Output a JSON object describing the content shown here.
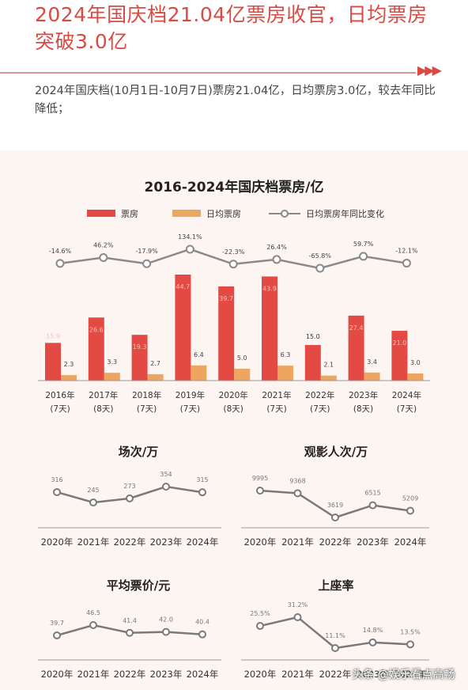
{
  "headline": "2024年国庆档21.04亿票房收官，日均票房突破3.0亿",
  "intro": "2024年国庆档(10月1日-10月7日)票房21.04亿，日均票房3.0亿，较去年同比降低；",
  "arrow_glyph": "▶▶▶",
  "watermark": "头条 @娱乐看点高畅",
  "colors": {
    "accent": "#d94a42",
    "bar_box": "#e34a43",
    "bar_daily": "#eda55f",
    "line": "#8a8a8a"
  },
  "chart_data": [
    {
      "type": "bar",
      "title": "2016-2024年国庆档票房/亿",
      "categories": [
        "2016年",
        "2017年",
        "2018年",
        "2019年",
        "2020年",
        "2021年",
        "2022年",
        "2023年",
        "2024年"
      ],
      "category_sublabels": [
        "(7天)",
        "(8天)",
        "(7天)",
        "(7天)",
        "(8天)",
        "(7天)",
        "(7天)",
        "(8天)",
        "(7天)"
      ],
      "series": [
        {
          "name": "票房",
          "values": [
            15.9,
            26.6,
            19.3,
            44.7,
            39.7,
            43.9,
            15.0,
            27.4,
            21.0
          ],
          "labels": [
            "15.9",
            "26.6",
            "19.3",
            "44.7",
            "39.7",
            "43.9",
            "15.0",
            "27.4",
            "21.0"
          ],
          "color": "#e34a43"
        },
        {
          "name": "日均票房",
          "values": [
            2.3,
            3.3,
            2.7,
            6.4,
            5.0,
            6.3,
            2.1,
            3.4,
            3.0
          ],
          "labels": [
            "2.3",
            "3.3",
            "2.7",
            "6.4",
            "5.0",
            "6.3",
            "2.1",
            "3.4",
            "3.0"
          ],
          "color": "#eda55f"
        },
        {
          "name": "日均票房年同比变化",
          "type": "line",
          "values": [
            -14.6,
            46.2,
            -17.9,
            134.1,
            -22.3,
            26.4,
            -65.8,
            59.7,
            -12.1
          ],
          "labels": [
            "-14.6%",
            "46.2%",
            "-17.9%",
            "134.1%",
            "-22.3%",
            "26.4%",
            "-65.8%",
            "59.7%",
            "-12.1%"
          ],
          "color": "#8a8a8a"
        }
      ],
      "legend_position": "top"
    },
    {
      "type": "line",
      "title": "场次/万",
      "categories": [
        "2020年",
        "2021年",
        "2022年",
        "2023年",
        "2024年"
      ],
      "values": [
        316,
        245,
        273,
        354,
        315
      ],
      "labels": [
        "316",
        "245",
        "273",
        "354",
        "315"
      ]
    },
    {
      "type": "line",
      "title": "观影人次/万",
      "categories": [
        "2020年",
        "2021年",
        "2022年",
        "2023年",
        "2024年"
      ],
      "values": [
        9995,
        9368,
        3619,
        6515,
        5209
      ],
      "labels": [
        "9995",
        "9368",
        "3619",
        "6515",
        "5209"
      ]
    },
    {
      "type": "line",
      "title": "平均票价/元",
      "categories": [
        "2020年",
        "2021年",
        "2022年",
        "2023年",
        "2024年"
      ],
      "values": [
        39.7,
        46.5,
        41.4,
        42.0,
        40.4
      ],
      "labels": [
        "39.7",
        "46.5",
        "41.4",
        "42.0",
        "40.4"
      ]
    },
    {
      "type": "line",
      "title": "上座率",
      "categories": [
        "2020年",
        "2021年",
        "2022年",
        "2023年",
        "2024年"
      ],
      "values": [
        25.5,
        31.2,
        11.1,
        14.8,
        13.5
      ],
      "labels": [
        "25.5%",
        "31.2%",
        "11.1%",
        "14.8%",
        "13.5%"
      ]
    }
  ]
}
